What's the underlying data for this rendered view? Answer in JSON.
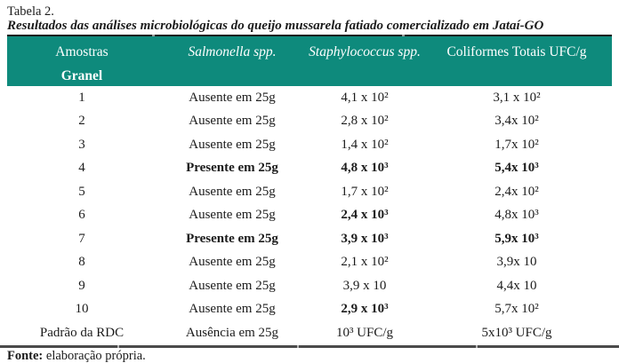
{
  "page": {
    "title": "Tabela 2.",
    "subtitle": "Resultados das análises microbiológicas do queijo mussarela fatiado comercializado em Jataí-GO"
  },
  "table": {
    "headers": [
      "Amostras",
      "Salmonella spp.",
      "Staphylococcus spp.",
      "Coliformes Totais UFC/g"
    ],
    "group_label": "Granel",
    "rows": [
      {
        "cells": [
          "1",
          "Ausente em 25g",
          "4,1 x 10²",
          "3,1 x 10²"
        ],
        "bold": [
          false,
          false,
          false,
          false
        ]
      },
      {
        "cells": [
          "2",
          "Ausente em 25g",
          "2,8 x 10²",
          "3,4x 10²"
        ],
        "bold": [
          false,
          false,
          false,
          false
        ]
      },
      {
        "cells": [
          "3",
          "Ausente em 25g",
          "1,4 x 10²",
          "1,7x 10²"
        ],
        "bold": [
          false,
          false,
          false,
          false
        ]
      },
      {
        "cells": [
          "4",
          "Presente em 25g",
          "4,8 x 10³",
          "5,4x 10³"
        ],
        "bold": [
          false,
          true,
          true,
          true
        ]
      },
      {
        "cells": [
          "5",
          "Ausente em 25g",
          "1,7 x 10²",
          "2,4x 10²"
        ],
        "bold": [
          false,
          false,
          false,
          false
        ]
      },
      {
        "cells": [
          "6",
          "Ausente em 25g",
          "2,4 x 10³",
          "4,8x 10³"
        ],
        "bold": [
          false,
          false,
          true,
          false
        ]
      },
      {
        "cells": [
          "7",
          "Presente em 25g",
          "3,9 x 10³",
          "5,9x 10³"
        ],
        "bold": [
          false,
          true,
          true,
          true
        ]
      },
      {
        "cells": [
          "8",
          "Ausente em 25g",
          "2,1 x 10²",
          "3,9x 10"
        ],
        "bold": [
          false,
          false,
          false,
          false
        ]
      },
      {
        "cells": [
          "9",
          "Ausente em 25g",
          "3,9 x 10",
          "4,4x 10"
        ],
        "bold": [
          false,
          false,
          false,
          false
        ]
      },
      {
        "cells": [
          "10",
          "Ausente em 25g",
          "2,9 x 10³",
          "5,7x 10²"
        ],
        "bold": [
          false,
          false,
          true,
          false
        ]
      },
      {
        "cells": [
          "Padrão da RDC",
          "Ausência em 25g",
          "10³ UFC/g",
          "5x10³ UFC/g"
        ],
        "bold": [
          false,
          false,
          false,
          false
        ]
      }
    ]
  },
  "footer": {
    "label": "Fonte:",
    "text": " elaboração própria."
  },
  "colors": {
    "header_bg": "#0E8A7C",
    "header_text": "#FFFFFF",
    "top_rule": "#1C1C1C",
    "bottom_rule": "#4A4A4A",
    "body_text": "#1B1B1B"
  }
}
